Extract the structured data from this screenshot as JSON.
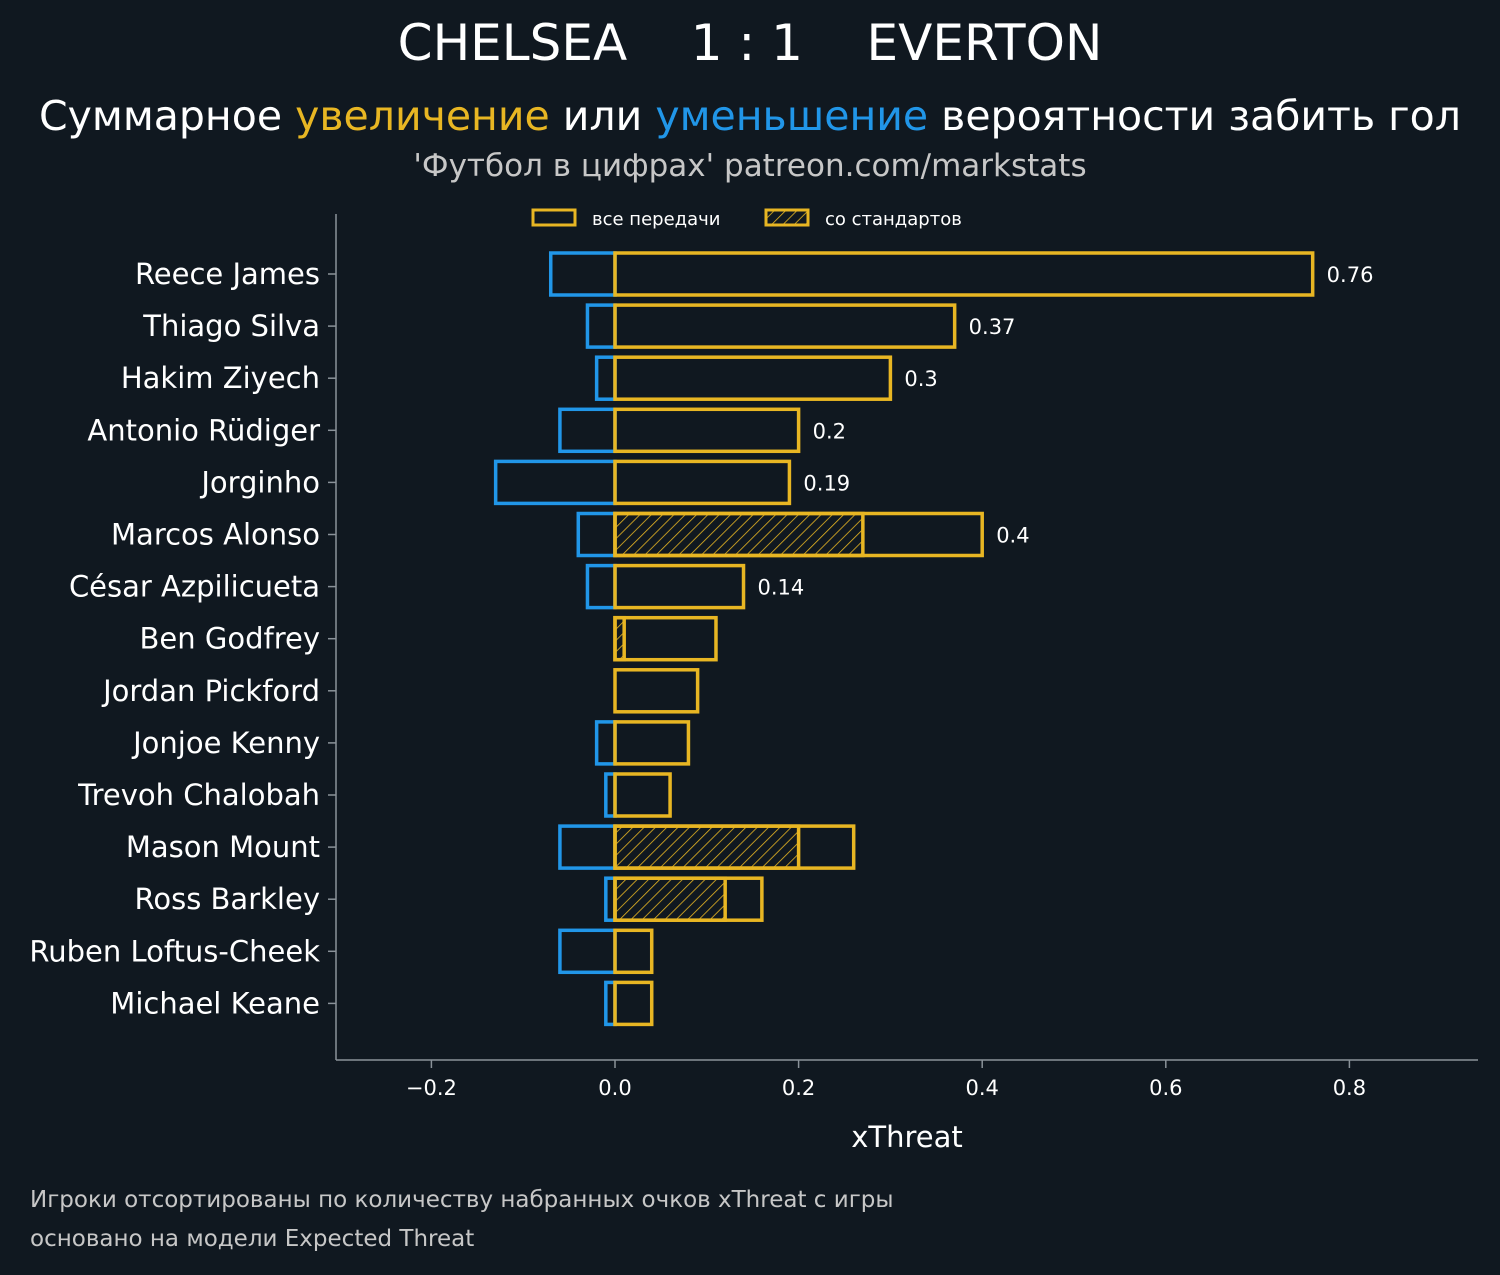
{
  "header": {
    "title": "CHELSEA    1 : 1    EVERTON",
    "subtitle_part1": "Суммарное ",
    "subtitle_inc": "увеличение",
    "subtitle_part2": " или ",
    "subtitle_dec": "уменьшение",
    "subtitle_part3": " вероятности забить гол",
    "source": "'Футбол в цифрах' patreon.com/markstats"
  },
  "footer": {
    "line1": "Игроки отсортированы по количеству набранных очков xThreat с игры",
    "line2": "основано на модели Expected Threat"
  },
  "chart_data": {
    "type": "bar",
    "orientation": "horizontal",
    "xlabel": "xThreat",
    "xlim": [
      -0.31,
      0.94
    ],
    "xticks": [
      -0.2,
      0.0,
      0.2,
      0.4,
      0.6,
      0.8
    ],
    "xtick_labels": [
      "−0.2",
      "0.0",
      "0.2",
      "0.4",
      "0.6",
      "0.8"
    ],
    "grid": false,
    "legend_position": "top-center",
    "legend": [
      {
        "label": "все передачи",
        "style": "outline"
      },
      {
        "label": "со стандартов",
        "style": "hatched"
      }
    ],
    "colors": {
      "increase": "#e8b623",
      "decrease": "#2196e8",
      "background": "#101820",
      "axis": "#8a9299"
    },
    "categories": [
      "Reece James",
      "Thiago Silva",
      "Hakim Ziyech",
      "Antonio Rüdiger",
      "Jorginho",
      "Marcos Alonso",
      "César Azpilicueta",
      "Ben Godfrey",
      "Jordan Pickford",
      "Jonjoe Kenny",
      "Trevoh Chalobah",
      "Mason Mount",
      "Ross Barkley",
      "Ruben Loftus-Cheek",
      "Michael Keane"
    ],
    "series": [
      {
        "name": "все передачи",
        "role": "increase",
        "values": [
          0.76,
          0.37,
          0.3,
          0.2,
          0.19,
          0.4,
          0.14,
          0.11,
          0.09,
          0.08,
          0.06,
          0.26,
          0.16,
          0.04,
          0.04
        ]
      },
      {
        "name": "со стандартов",
        "role": "increase_set_pieces",
        "values": [
          0,
          0,
          0,
          0,
          0,
          0.27,
          0,
          0.01,
          0,
          0,
          0,
          0.2,
          0.12,
          0,
          0
        ]
      },
      {
        "role": "decrease",
        "values": [
          -0.07,
          -0.03,
          -0.02,
          -0.06,
          -0.13,
          -0.04,
          -0.03,
          0,
          0,
          -0.02,
          -0.01,
          -0.06,
          -0.01,
          -0.06,
          -0.01
        ]
      }
    ],
    "value_labels": [
      "0.76",
      "0.37",
      "0.3",
      "0.2",
      "0.19",
      "0.4",
      "0.14",
      "",
      "",
      "",
      "",
      "",
      "",
      "",
      ""
    ]
  }
}
